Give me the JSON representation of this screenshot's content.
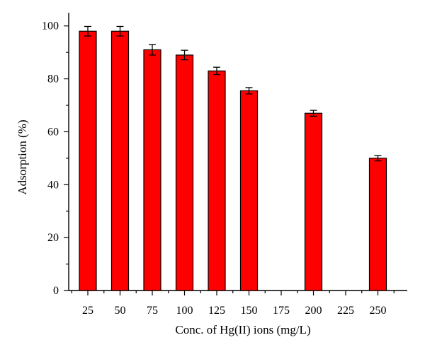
{
  "chart_data": {
    "type": "bar",
    "xlabel": "Conc. of Hg(II) ions (mg/L)",
    "ylabel": "Adsorption (%)",
    "categories": [
      "25",
      "50",
      "75",
      "100",
      "125",
      "150",
      "175",
      "200",
      "225",
      "250"
    ],
    "values": [
      98,
      98,
      91,
      89,
      83,
      75.5,
      null,
      67,
      null,
      50
    ],
    "errors": [
      1.8,
      1.8,
      2.0,
      1.8,
      1.4,
      1.2,
      null,
      1.1,
      null,
      1.0
    ],
    "ylim": [
      0,
      105
    ],
    "yticks": [
      0,
      20,
      40,
      60,
      80,
      100
    ],
    "grid": false,
    "colors": {
      "bar_fill": "#ff0000",
      "bar_edge": "#000000"
    }
  }
}
